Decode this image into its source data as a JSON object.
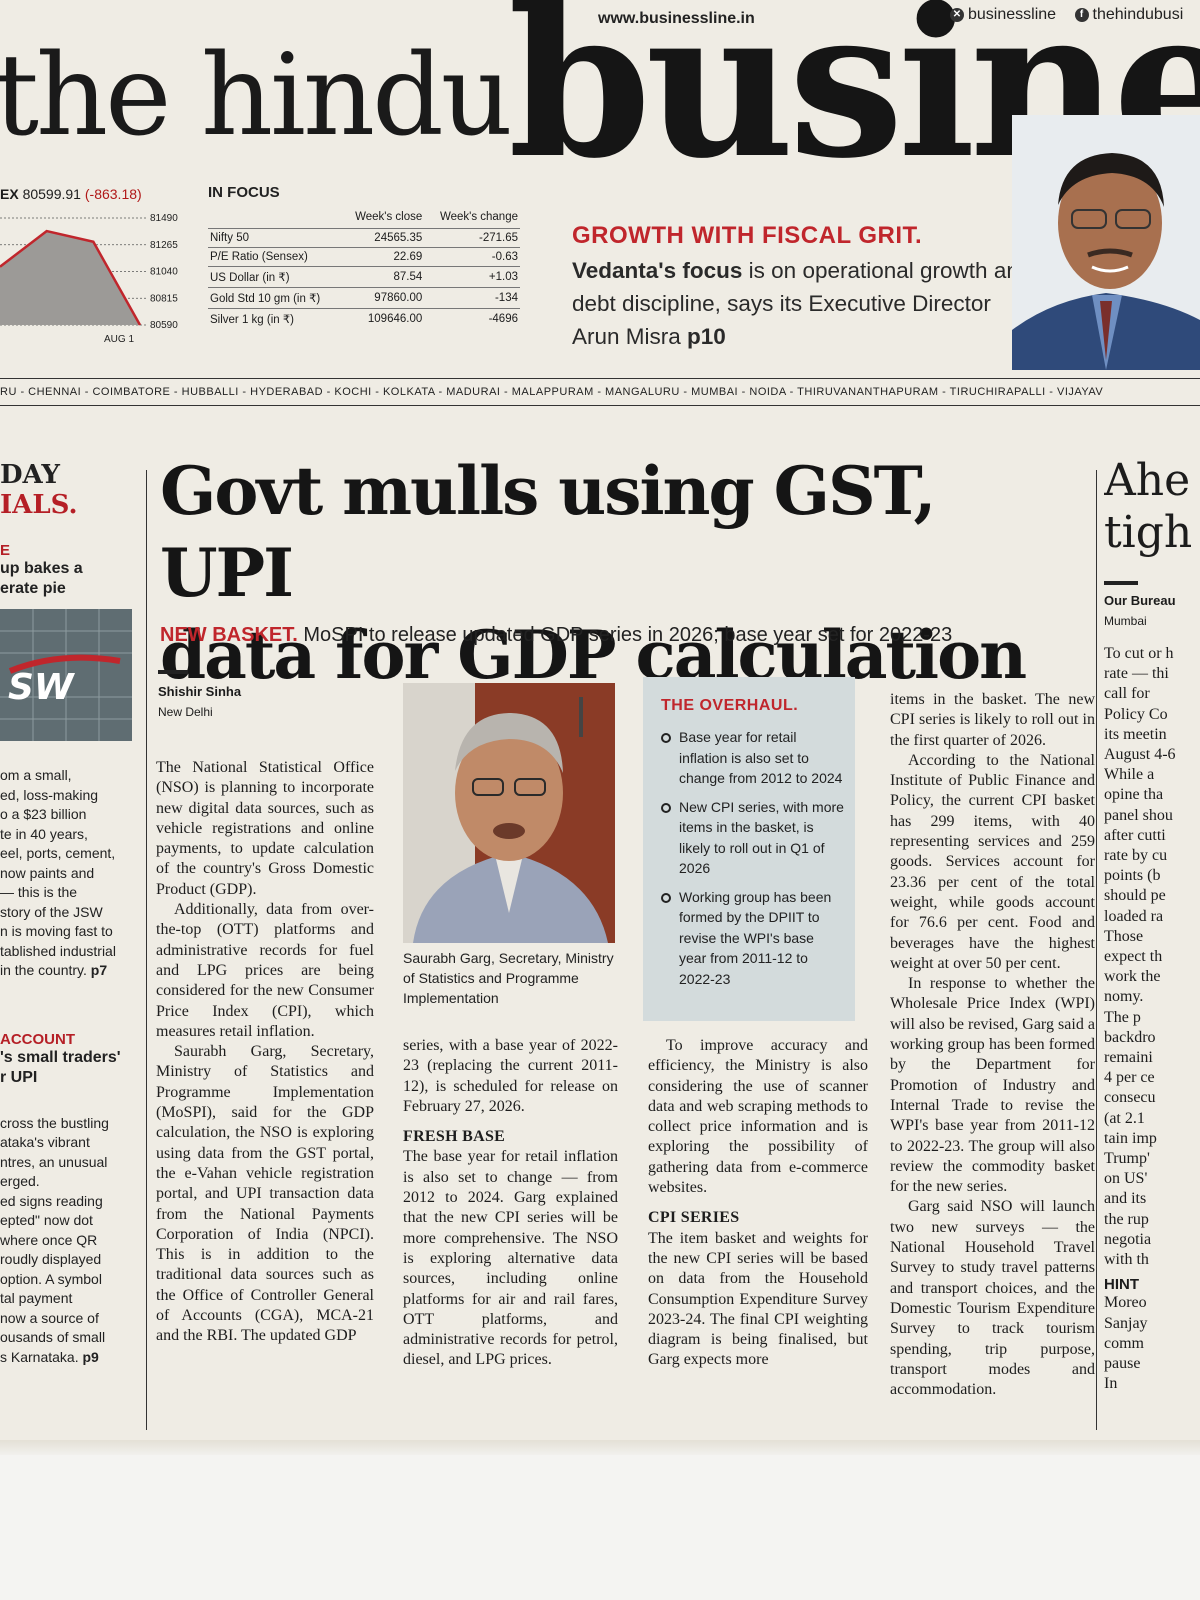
{
  "masthead": {
    "left": "the hindu",
    "right": "busines",
    "url": "www.businessline.in",
    "social_x": "businessline",
    "social_fb": "thehindubusi"
  },
  "sensex": {
    "label": "EX",
    "value": "80599.91",
    "change": "(-863.18)",
    "chart_data": {
      "type": "area",
      "y_ticks": [
        "81490",
        "81265",
        "81040",
        "80815",
        "80590"
      ],
      "x_label": "AUG 1",
      "ylim": [
        80590,
        81490
      ],
      "x": [
        0,
        1,
        2,
        3
      ],
      "y": [
        81080,
        81380,
        81290,
        80590
      ]
    }
  },
  "in_focus": {
    "title": "IN FOCUS",
    "col1": "Week's close",
    "col2": "Week's change",
    "rows": [
      {
        "name": "Nifty 50",
        "close": "24565.35",
        "change": "-271.65"
      },
      {
        "name": "P/E Ratio  (Sensex)",
        "close": "22.69",
        "change": "-0.63"
      },
      {
        "name": "US Dollar  (in ₹)",
        "close": "87.54",
        "change": "+1.03"
      },
      {
        "name": "Gold Std 10 gm    (in ₹)",
        "close": "97860.00",
        "change": "-134"
      },
      {
        "name": "Silver 1 kg  (in ₹)",
        "close": "109646.00",
        "change": "-4696"
      }
    ]
  },
  "promo": {
    "kicker": "GROWTH WITH FISCAL GRIT.",
    "lead": "Vedanta's focus",
    "text": " is on operational growth and debt discipline, says its Executive Director Arun Misra ",
    "page": "p10"
  },
  "cities": "RU  -  CHENNAI  -  COIMBATORE  -  HUBBALLI  -  HYDERABAD  -  KOCHI  -  KOLKATA  -  MADURAI  -  MALAPPURAM  -  MANGALURU  -  MUMBAI  -  NOIDA  -  THIRUVANANTHAPURAM  -  TIRUCHIRAPALLI  -  VIJAYAV",
  "left_col": {
    "big1": "DAY",
    "big2": "IALS.",
    "tag1": "E",
    "head1a": "up bakes a",
    "head1b": "erate pie",
    "jsw": "SW",
    "snippet1": [
      "om a small,",
      "ed, loss-making",
      "o a $23 billion",
      "te in 40 years,",
      "eel, ports, cement,",
      "now paints and",
      "— this is the",
      "story of the JSW",
      "n is moving fast to",
      "tablished industrial",
      "in the country. "
    ],
    "snippet1_page": "p7",
    "tag2": "ACCOUNT",
    "head2a": "'s small traders'",
    "head2b": "r UPI",
    "snippet2": [
      "cross the bustling",
      "ataka's vibrant",
      "ntres, an unusual",
      "erged.",
      "ed signs reading",
      "epted\" now dot",
      "where once QR",
      "roudly displayed",
      " option. A symbol",
      "tal payment",
      "now a source of",
      "ousands of small",
      "s Karnataka. "
    ],
    "snippet2_page": "p9"
  },
  "article": {
    "headline1": "Govt mulls using GST, UPI",
    "headline2": "data for GDP calculation",
    "deck_tag": "NEW BASKET.",
    "deck": " MoSPI to release updated GDP series in 2026; base year set for 2022-23",
    "author": "Shishir Sinha",
    "location": "New Delhi",
    "col1": [
      "The National Statistical Office (NSO) is planning to incorporate new digital data sources, such as vehicle registrations and online payments, to update calculation of the country's Gross Domestic Product (GDP).",
      "Additionally, data from over-the-top (OTT) platforms and administrative records for fuel and LPG prices are being considered for the new Consumer Price Index (CPI), which measures retail inflation.",
      "Saurabh Garg, Secretary, Ministry of Statistics and Programme Implementation (MoSPI), said for the GDP calculation, the NSO is exploring using data from the GST portal, the e-Vahan vehicle registration portal, and UPI transaction data from the National Payments Corporation of India (NPCI). This is in addition to the traditional data sources such as the Office of Controller General of Accounts (CGA), MCA-21 and the RBI. The updated GDP"
    ],
    "caption": "Saurabh Garg, Secretary, Ministry of Statistics and Programme Implementation",
    "col2_cont": "series, with a base year of 2022-23 (replacing the current 2011-12), is scheduled for release on February 27, 2026.",
    "sub1": "FRESH BASE",
    "col2_p": "The base year for retail inflation is also set to change — from 2012 to 2024. Garg explained that the new CPI series will be more comprehensive. The NSO is exploring alternative data sources, including online platforms for air and rail fares, OTT platforms, and administrative records for petrol, diesel, and LPG prices.",
    "overhaul_title": "THE OVERHAUL.",
    "overhaul_items": [
      "Base year for retail inflation is also set to change from 2012 to 2024",
      "New CPI series, with more items in the basket, is likely to roll out in Q1 of 2026",
      "Working group has been formed by the DPIIT to revise the WPI's base year from 2011-12 to 2022-23"
    ],
    "col3_p": "To improve accuracy and efficiency, the Ministry is also considering the use of scanner data and web scraping methods to collect price information and is exploring the possibility of gathering data from e-commerce websites.",
    "sub2": "CPI SERIES",
    "col3_p2": "The item basket and weights for the new CPI series will be based on data from the Household Consumption Expenditure Survey 2023-24. The final CPI weighting diagram is being finalised, but Garg expects more",
    "col4": [
      "items in the basket. The new CPI series is likely to roll out in the first quarter of 2026.",
      "According to the National Institute of Public Finance and Policy, the current CPI basket has 299 items, with 40 representing services and 259 goods. Services account for 23.36 per cent of the total weight, while goods account for 76.6 per cent. Food and beverages have the highest weight at over 50 per cent.",
      "In response to whether the Wholesale Price Index (WPI) will also be revised, Garg said a working group has been formed by the Department for Promotion of Industry and Internal Trade to revise the WPI's base year from 2011-12 to 2022-23. The group will also review the commodity basket for the new series.",
      "Garg said NSO will launch two new surveys — the National Household Travel Survey to study travel patterns and transport choices, and the Domestic Tourism Expenditure Survey to track tourism spending, trip purpose, transport modes and accommodation."
    ]
  },
  "right_col": {
    "head1": "Ahe",
    "head2": "tigh",
    "bureau": "Our Bureau",
    "city": "Mumbai",
    "lines": [
      "To cut or h",
      "rate — thi",
      "call  for",
      "Policy Co",
      "its meetin",
      "August 4-6",
      "   While a",
      "opine tha",
      "panel shou",
      "after cutti",
      "rate by cu",
      "points  (b",
      "should pe",
      "loaded ra",
      "   Those",
      "expect th",
      "work the",
      "nomy.",
      "   The p",
      "backdro",
      "remaini",
      "4 per ce",
      "consecu",
      "(at 2.1",
      "tain imp",
      "Trump'",
      "on US'",
      "and its",
      "the rup",
      "negotia",
      "with th"
    ],
    "hint": "HINT",
    "lines2": [
      "Moreo",
      "Sanjay",
      "comm",
      "pause",
      "   In"
    ]
  }
}
